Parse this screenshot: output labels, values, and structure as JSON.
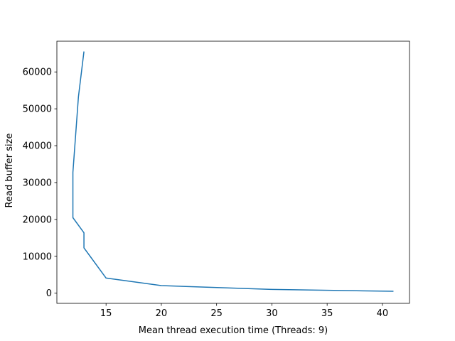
{
  "chart_data": {
    "type": "line",
    "title": "",
    "xlabel": "Mean thread execution time (Threads: 9)",
    "ylabel": "Read buffer size",
    "xlim": [
      10.55,
      42.45
    ],
    "ylim": [
      -2759,
      68332
    ],
    "xticks": [
      15,
      20,
      25,
      30,
      35,
      40
    ],
    "yticks": [
      0,
      10000,
      20000,
      30000,
      40000,
      50000,
      60000
    ],
    "xtick_labels": [
      "15",
      "20",
      "25",
      "30",
      "35",
      "40"
    ],
    "ytick_labels": [
      "0",
      "10000",
      "20000",
      "30000",
      "40000",
      "50000",
      "60000"
    ],
    "grid": false,
    "series": [
      {
        "color": "#1f77b4",
        "x": [
          41,
          30,
          20,
          15,
          13,
          13,
          12,
          12,
          12,
          12.5,
          13
        ],
        "y": [
          512,
          1024,
          2048,
          4096,
          12288,
          16384,
          20480,
          24576,
          32768,
          53248,
          65536
        ]
      }
    ]
  }
}
